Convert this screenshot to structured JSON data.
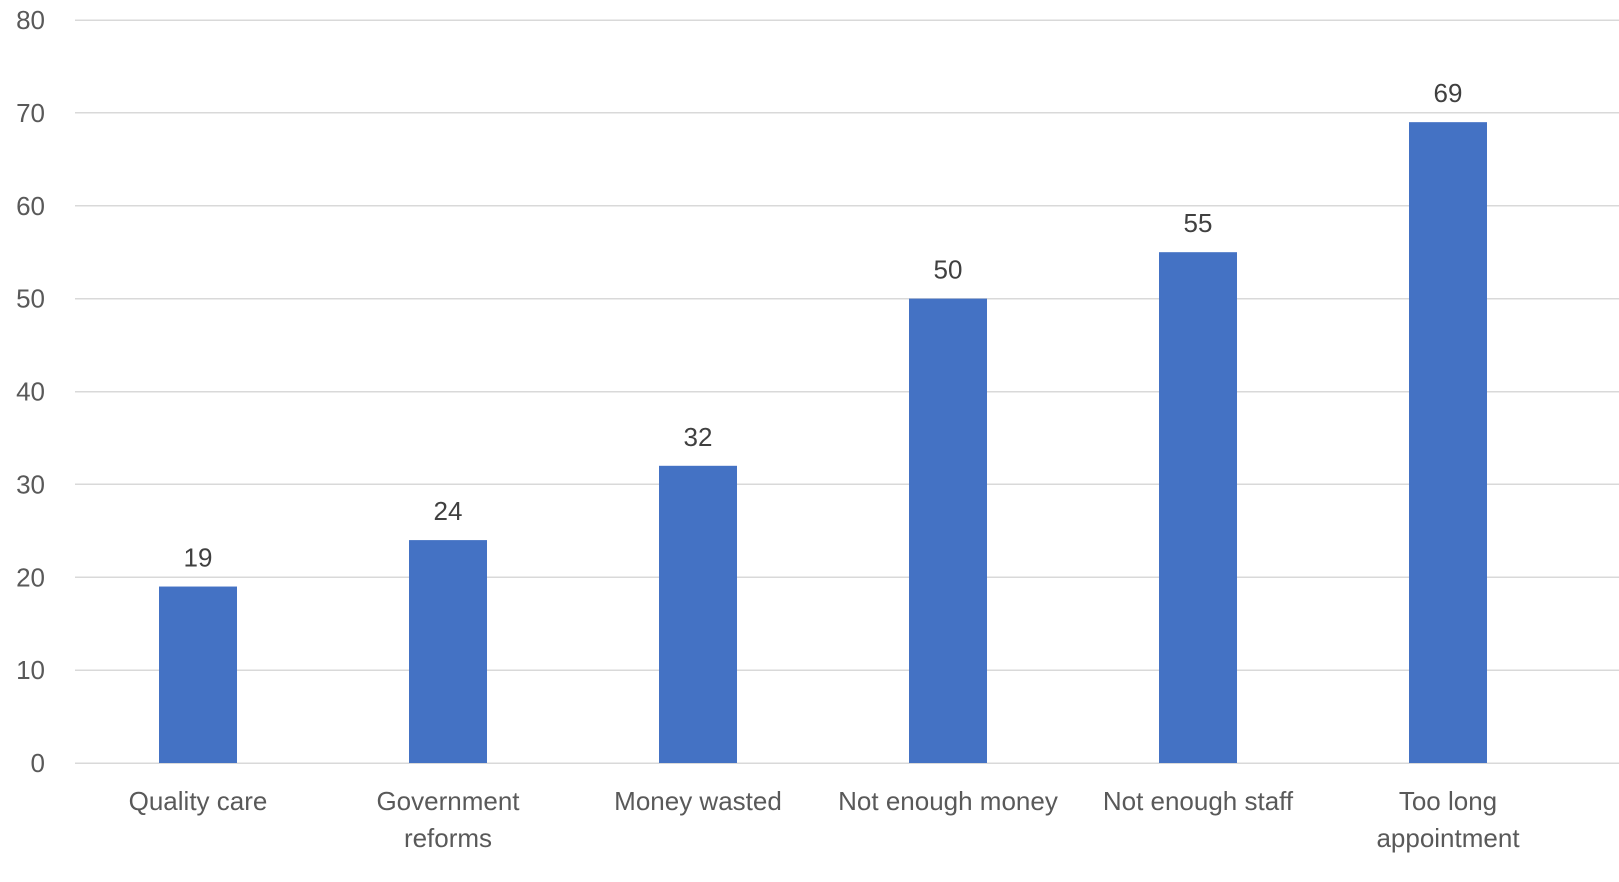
{
  "chart_data": {
    "type": "bar",
    "title": "",
    "xlabel": "",
    "ylabel": "",
    "categories": [
      [
        "Quality care"
      ],
      [
        "Government",
        "reforms"
      ],
      [
        "Money wasted"
      ],
      [
        "Not enough money"
      ],
      [
        "Not enough staff"
      ],
      [
        "Too long",
        "appointment"
      ]
    ],
    "values": [
      19,
      24,
      32,
      50,
      55,
      69
    ],
    "data_labels": [
      "19",
      "24",
      "32",
      "50",
      "55",
      "69"
    ],
    "ylim": [
      0,
      80
    ],
    "yticks": [
      0,
      10,
      20,
      30,
      40,
      50,
      60,
      70,
      80
    ],
    "ytick_labels": [
      "0",
      "10",
      "20",
      "30",
      "40",
      "50",
      "60",
      "70",
      "80"
    ],
    "grid": true,
    "legend": "none",
    "bar_color": "#4472c4"
  }
}
